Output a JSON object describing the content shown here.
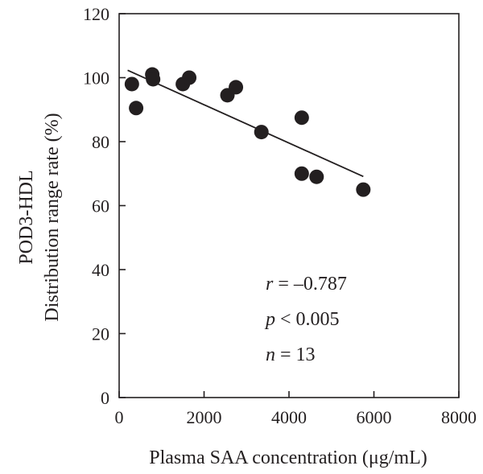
{
  "chart_data": {
    "type": "scatter",
    "xlabel": "Plasma SAA concentration (μg/mL)",
    "ylabel_lines": [
      "POD3-HDL",
      "Distribution range rate (%)"
    ],
    "xlim": [
      0,
      8000
    ],
    "ylim": [
      0,
      120
    ],
    "x_ticks": [
      0,
      2000,
      4000,
      6000,
      8000
    ],
    "y_ticks": [
      0,
      20,
      40,
      60,
      80,
      100,
      120
    ],
    "points": [
      {
        "x": 300,
        "y": 98
      },
      {
        "x": 400,
        "y": 90.5
      },
      {
        "x": 780,
        "y": 101
      },
      {
        "x": 800,
        "y": 99.5
      },
      {
        "x": 1500,
        "y": 98
      },
      {
        "x": 1650,
        "y": 100
      },
      {
        "x": 2550,
        "y": 94.5
      },
      {
        "x": 2750,
        "y": 97
      },
      {
        "x": 3350,
        "y": 83
      },
      {
        "x": 4300,
        "y": 87.5
      },
      {
        "x": 4300,
        "y": 70
      },
      {
        "x": 4650,
        "y": 69
      },
      {
        "x": 5750,
        "y": 65
      }
    ],
    "trendline": {
      "x0": 200,
      "y0": 102.3,
      "x1": 5750,
      "y1": 69.1
    },
    "annotations": [
      {
        "var": "r",
        "text": " = –0.787"
      },
      {
        "var": "p",
        "text": " < 0.005"
      },
      {
        "var": "n",
        "text": " = 13"
      }
    ],
    "grid": false,
    "legend": "none",
    "colors": {
      "points": "#231f20",
      "line": "#231f20",
      "axis": "#231f20"
    }
  }
}
